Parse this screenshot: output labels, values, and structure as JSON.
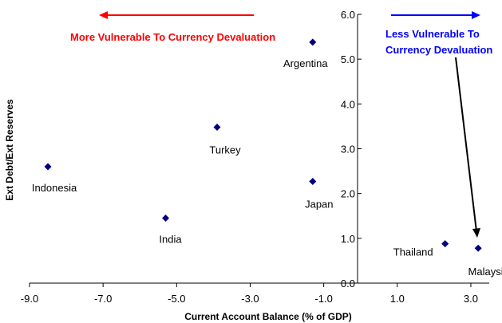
{
  "chart_data": {
    "type": "scatter",
    "xlabel": "Current Account Balance (% of GDP)",
    "ylabel": "Ext Debt/Ext Reserves",
    "xlim": [
      -9.0,
      3.5
    ],
    "ylim": [
      0.0,
      6.0
    ],
    "x_ticks": [
      "-9.0",
      "-7.0",
      "-5.0",
      "-3.0",
      "-1.0",
      "1.0",
      "3.0"
    ],
    "y_ticks": [
      "0.0",
      "1.0",
      "2.0",
      "3.0",
      "4.0",
      "5.0",
      "6.0"
    ],
    "grid": false,
    "marker_color": "#000080",
    "points": [
      {
        "name": "Indonesia",
        "x": -8.5,
        "y": 2.6
      },
      {
        "name": "India",
        "x": -5.3,
        "y": 1.45
      },
      {
        "name": "Turkey",
        "x": -3.9,
        "y": 3.48
      },
      {
        "name": "Argentina",
        "x": -1.3,
        "y": 5.38
      },
      {
        "name": "Japan",
        "x": -1.3,
        "y": 2.27
      },
      {
        "name": "Thailand",
        "x": 2.3,
        "y": 0.88
      },
      {
        "name": "Malaysia",
        "x": 3.2,
        "y": 0.78
      }
    ],
    "annotations": {
      "left": {
        "text": "More Vulnerable To Currency Devaluation",
        "color": "#ff0000"
      },
      "right_line1": "Less Vulnerable To",
      "right_line2": "Currency Devaluation",
      "right_color": "#0000ff"
    }
  }
}
